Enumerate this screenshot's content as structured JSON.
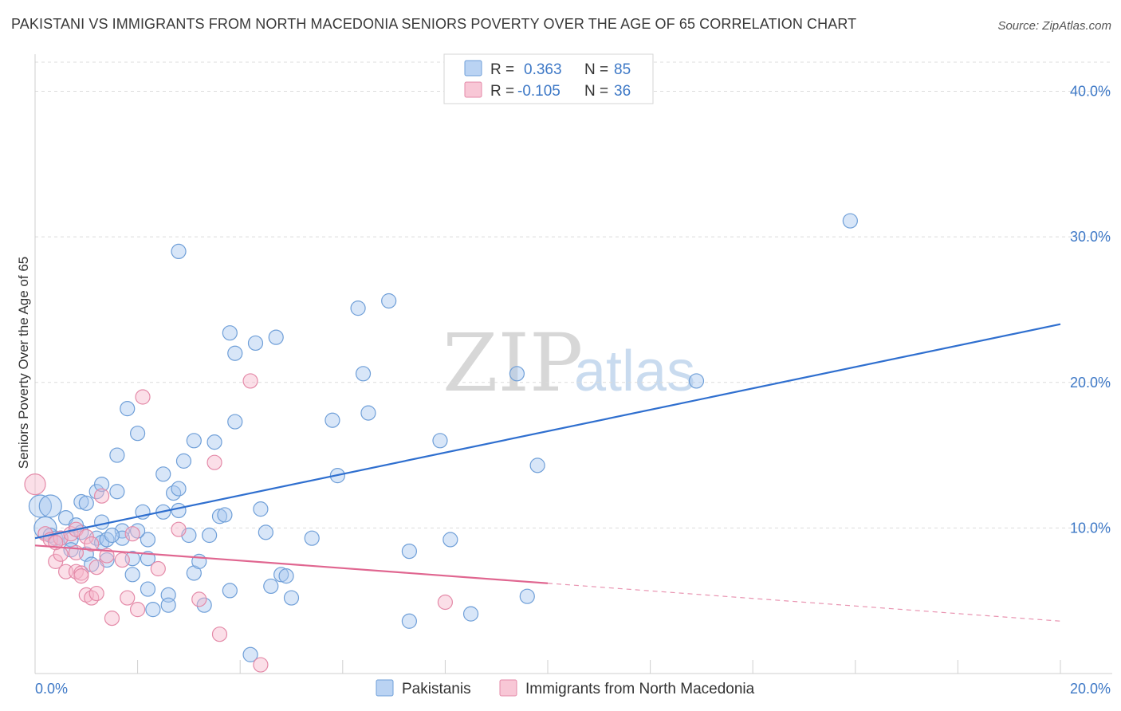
{
  "title": "PAKISTANI VS IMMIGRANTS FROM NORTH MACEDONIA SENIORS POVERTY OVER THE AGE OF 65 CORRELATION CHART",
  "source": "Source: ZipAtlas.com",
  "watermark": {
    "zip": "ZIP",
    "atlas": "atlas"
  },
  "legend_top": {
    "rows": [
      {
        "r_label": "R =",
        "r_value": "0.363",
        "n_label": "N =",
        "n_value": "85",
        "color": "#a9c8f0"
      },
      {
        "r_label": "R =",
        "r_value": "-0.105",
        "n_label": "N =",
        "n_value": "36",
        "color": "#f6b9cc"
      }
    ]
  },
  "legend_bottom": {
    "items": [
      {
        "label": "Pakistanis",
        "color": "#a9c8f0"
      },
      {
        "label": "Immigrants from North Macedonia",
        "color": "#f6b9cc"
      }
    ]
  },
  "chart_data": {
    "type": "scatter",
    "title": "PAKISTANI VS IMMIGRANTS FROM NORTH MACEDONIA SENIORS POVERTY OVER THE AGE OF 65 CORRELATION CHART",
    "xlabel": "",
    "ylabel": "Seniors Poverty Over the Age of 65",
    "xlim": [
      0,
      20
    ],
    "ylim": [
      0,
      42
    ],
    "x_tick_labels": [
      "0.0%",
      "20.0%"
    ],
    "y_ticks": [
      10,
      20,
      30,
      40
    ],
    "y_tick_labels": [
      "10.0%",
      "20.0%",
      "30.0%",
      "40.0%"
    ],
    "grid": true,
    "legend_position": "top-center",
    "series": [
      {
        "name": "Pakistanis",
        "color": "#a9c8f0",
        "edge_color": "#6f9fd8",
        "line_color": "#2f6fcf",
        "trend": {
          "x": [
            0,
            20
          ],
          "y": [
            9.3,
            24.0
          ],
          "dashed_from": null
        },
        "points": [
          [
            0.1,
            11.5
          ],
          [
            0.2,
            10.0
          ],
          [
            0.3,
            11.5
          ],
          [
            0.3,
            9.5
          ],
          [
            0.4,
            9.3
          ],
          [
            0.5,
            9.3
          ],
          [
            0.6,
            10.7
          ],
          [
            0.7,
            9.2
          ],
          [
            0.7,
            8.5
          ],
          [
            0.8,
            10.2
          ],
          [
            0.9,
            11.8
          ],
          [
            0.9,
            9.7
          ],
          [
            1.0,
            11.7
          ],
          [
            1.0,
            8.2
          ],
          [
            1.1,
            7.5
          ],
          [
            1.2,
            9.3
          ],
          [
            1.2,
            12.5
          ],
          [
            1.3,
            10.4
          ],
          [
            1.3,
            9.0
          ],
          [
            1.3,
            13.0
          ],
          [
            1.4,
            9.2
          ],
          [
            1.4,
            7.8
          ],
          [
            1.6,
            12.5
          ],
          [
            1.6,
            15.0
          ],
          [
            1.7,
            9.8
          ],
          [
            1.7,
            9.3
          ],
          [
            1.8,
            18.2
          ],
          [
            1.9,
            6.8
          ],
          [
            1.9,
            7.9
          ],
          [
            2.0,
            16.5
          ],
          [
            2.1,
            11.1
          ],
          [
            2.2,
            5.8
          ],
          [
            2.2,
            9.2
          ],
          [
            2.3,
            4.4
          ],
          [
            2.2,
            7.9
          ],
          [
            2.5,
            11.1
          ],
          [
            2.5,
            13.7
          ],
          [
            2.6,
            5.4
          ],
          [
            2.6,
            4.7
          ],
          [
            2.7,
            12.4
          ],
          [
            2.8,
            12.7
          ],
          [
            2.8,
            11.2
          ],
          [
            2.8,
            29.0
          ],
          [
            2.9,
            14.6
          ],
          [
            3.0,
            9.5
          ],
          [
            3.1,
            16.0
          ],
          [
            3.1,
            6.9
          ],
          [
            3.2,
            7.7
          ],
          [
            3.3,
            4.7
          ],
          [
            3.4,
            9.5
          ],
          [
            3.5,
            15.9
          ],
          [
            3.6,
            10.8
          ],
          [
            3.7,
            10.9
          ],
          [
            3.8,
            23.4
          ],
          [
            3.8,
            5.7
          ],
          [
            3.9,
            17.3
          ],
          [
            3.9,
            22.0
          ],
          [
            4.2,
            1.3
          ],
          [
            4.3,
            22.7
          ],
          [
            4.4,
            11.3
          ],
          [
            4.5,
            9.7
          ],
          [
            4.6,
            6.0
          ],
          [
            4.7,
            23.1
          ],
          [
            4.8,
            6.8
          ],
          [
            4.9,
            6.7
          ],
          [
            5.0,
            5.2
          ],
          [
            5.4,
            9.3
          ],
          [
            5.8,
            17.4
          ],
          [
            5.9,
            13.6
          ],
          [
            6.3,
            25.1
          ],
          [
            6.4,
            20.6
          ],
          [
            6.5,
            17.9
          ],
          [
            6.9,
            25.6
          ],
          [
            7.3,
            3.6
          ],
          [
            7.3,
            8.4
          ],
          [
            7.9,
            16.0
          ],
          [
            8.1,
            9.2
          ],
          [
            8.5,
            4.1
          ],
          [
            9.4,
            20.6
          ],
          [
            9.6,
            5.3
          ],
          [
            9.8,
            14.3
          ],
          [
            12.9,
            20.1
          ],
          [
            15.9,
            31.1
          ],
          [
            1.5,
            9.5
          ],
          [
            2.0,
            9.8
          ]
        ],
        "point_sizes_note": "large cluster circles near x=0"
      },
      {
        "name": "Immigrants from North Macedonia",
        "color": "#f6b9cc",
        "edge_color": "#e48aa8",
        "line_color": "#e06690",
        "trend": {
          "x": [
            0,
            20
          ],
          "y": [
            8.8,
            3.6
          ],
          "dashed_from": 10.0
        },
        "points": [
          [
            0.0,
            13.0
          ],
          [
            0.2,
            9.6
          ],
          [
            0.3,
            9.2
          ],
          [
            0.4,
            7.7
          ],
          [
            0.5,
            9.3
          ],
          [
            0.5,
            8.2
          ],
          [
            0.6,
            7.0
          ],
          [
            0.7,
            9.6
          ],
          [
            0.8,
            8.3
          ],
          [
            0.8,
            9.9
          ],
          [
            0.8,
            7.0
          ],
          [
            0.9,
            6.9
          ],
          [
            0.9,
            6.7
          ],
          [
            1.0,
            9.4
          ],
          [
            1.0,
            5.4
          ],
          [
            1.1,
            5.2
          ],
          [
            1.1,
            8.9
          ],
          [
            1.2,
            7.3
          ],
          [
            1.2,
            5.5
          ],
          [
            1.3,
            12.2
          ],
          [
            1.4,
            8.1
          ],
          [
            1.5,
            3.8
          ],
          [
            1.7,
            7.8
          ],
          [
            1.8,
            5.2
          ],
          [
            1.9,
            9.6
          ],
          [
            2.0,
            4.4
          ],
          [
            2.1,
            19.0
          ],
          [
            2.4,
            7.2
          ],
          [
            2.8,
            9.9
          ],
          [
            3.2,
            5.1
          ],
          [
            3.5,
            14.5
          ],
          [
            3.6,
            2.7
          ],
          [
            4.2,
            20.1
          ],
          [
            4.4,
            0.6
          ],
          [
            8.0,
            4.9
          ],
          [
            0.4,
            9.0
          ]
        ]
      }
    ]
  }
}
